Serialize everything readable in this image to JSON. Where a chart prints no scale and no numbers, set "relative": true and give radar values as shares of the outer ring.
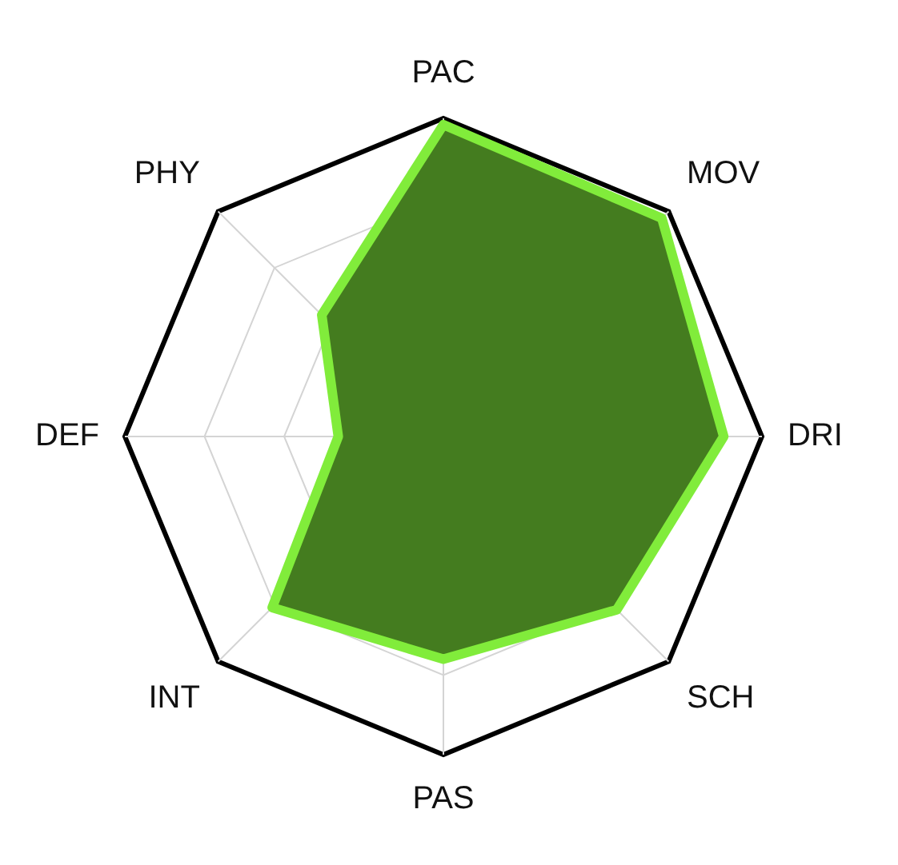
{
  "chart_data": {
    "type": "radar",
    "categories": [
      "PAC",
      "MOV",
      "DRI",
      "SCH",
      "PAS",
      "INT",
      "DEF",
      "PHY"
    ],
    "relative": true,
    "grid": true,
    "series": [
      {
        "color": "#447c1f",
        "values": [
          0.98,
          0.97,
          0.88,
          0.77,
          0.7,
          0.76,
          0.33,
          0.54
        ]
      }
    ]
  }
}
